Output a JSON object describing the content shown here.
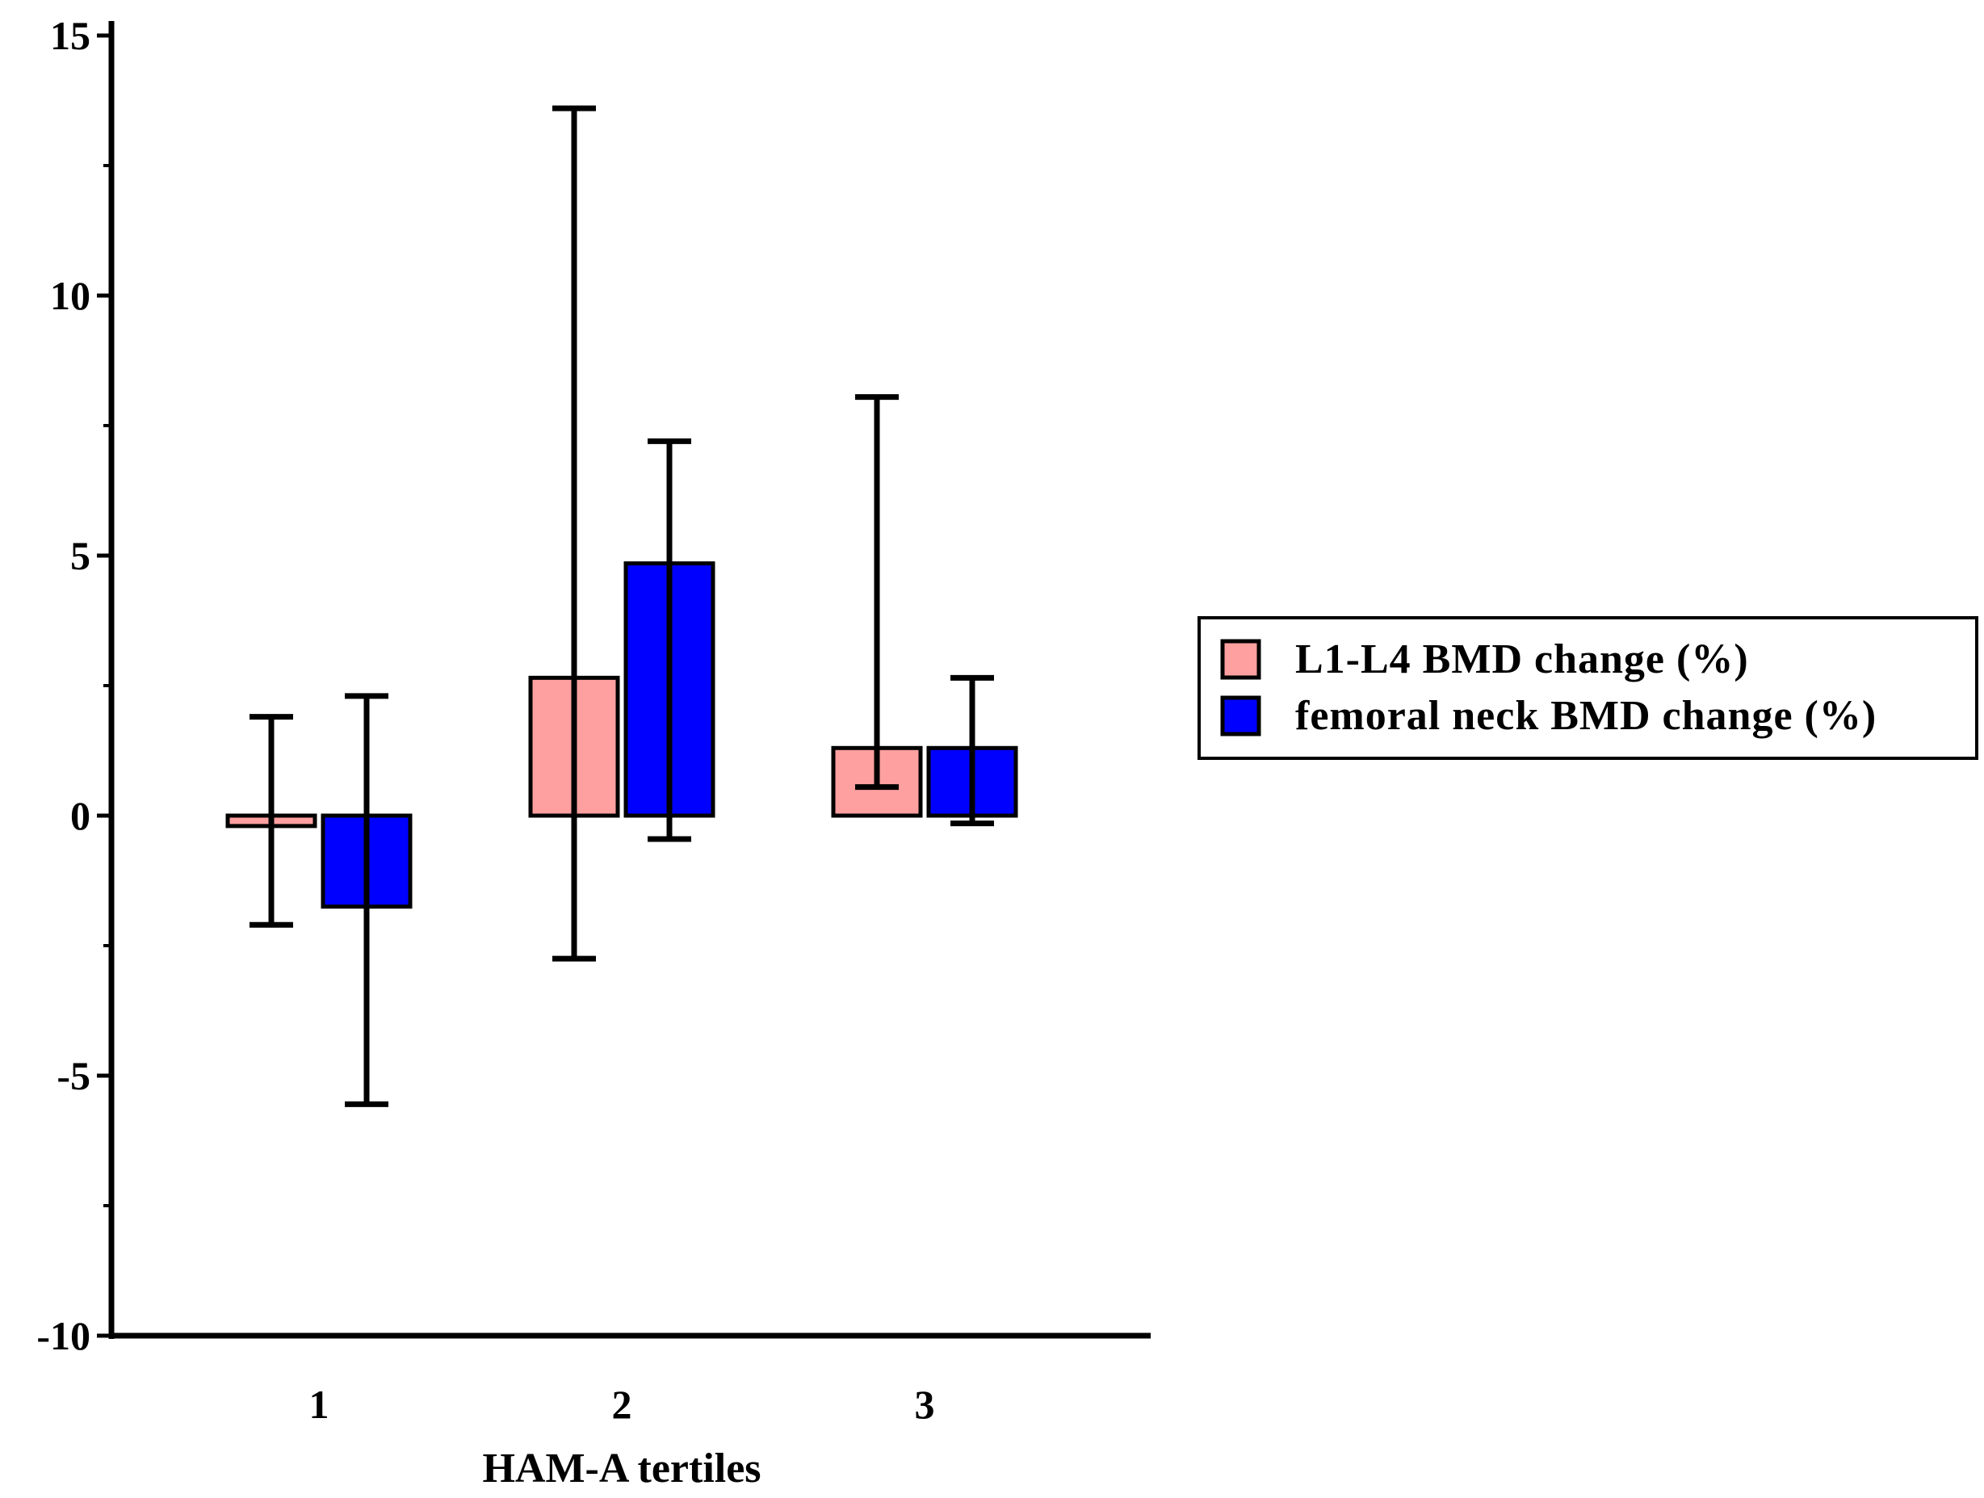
{
  "chart_data": {
    "type": "bar",
    "title": "",
    "xlabel": "HAM-A tertiles",
    "ylabel": "",
    "categories": [
      "1",
      "2",
      "3"
    ],
    "ylim": [
      -10,
      15
    ],
    "yticks": [
      "15",
      "10",
      "5",
      "0",
      "-5",
      "-10"
    ],
    "yminor_ticks": [
      12.5,
      7.5,
      2.5,
      -2.5,
      -7.5
    ],
    "grid": false,
    "legend_position": "right",
    "series": [
      {
        "name": "L1-L4 BMD change (%)",
        "color": "#FFA0A0",
        "values": [
          -0.2,
          2.65,
          1.3
        ],
        "error_upper": [
          1.9,
          13.6,
          8.05
        ],
        "error_lower": [
          -2.1,
          -2.75,
          0.55
        ]
      },
      {
        "name": "femoral neck BMD change (%)",
        "color": "#0000FF",
        "values": [
          -1.75,
          4.85,
          1.3
        ],
        "error_upper": [
          2.3,
          7.2,
          2.65
        ],
        "error_lower": [
          -5.55,
          -0.45,
          -0.15
        ]
      }
    ]
  }
}
